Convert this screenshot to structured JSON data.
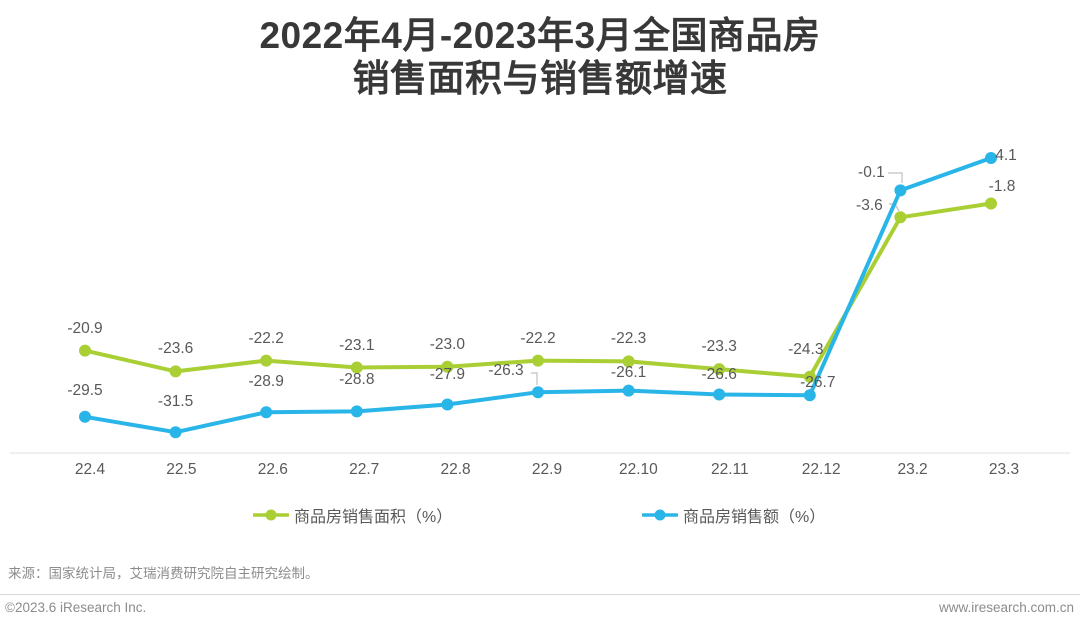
{
  "title": {
    "line1": "2022年4月-2023年3月全国商品房",
    "line2": "销售面积与销售额增速"
  },
  "chart_data": {
    "type": "line",
    "title": "2022年4月-2023年3月全国商品房销售面积与销售额增速",
    "categories": [
      "22.4",
      "22.5",
      "22.6",
      "22.7",
      "22.8",
      "22.9",
      "22.10",
      "22.11",
      "22.12",
      "23.2",
      "23.3"
    ],
    "series": [
      {
        "name": "商品房销售面积（%）",
        "color": "#a9cf35",
        "values": [
          -20.9,
          -23.6,
          -22.2,
          -23.1,
          -23.0,
          -22.2,
          -22.3,
          -23.3,
          -24.3,
          -3.6,
          -1.8
        ]
      },
      {
        "name": "商品房销售额（%）",
        "color": "#2ab5e9",
        "values": [
          -29.5,
          -31.5,
          -28.9,
          -28.8,
          -27.9,
          -26.3,
          -26.1,
          -26.6,
          -26.7,
          -0.1,
          4.1
        ]
      }
    ],
    "xlabel": "",
    "ylabel": "",
    "ylim": [
      -34.2,
      8.0
    ],
    "grid": false,
    "legend_position": "bottom",
    "data_labels_shown": true
  },
  "footer": {
    "source": "来源：国家统计局，艾瑞消费研究院自主研究绘制。",
    "copyright": "©2023.6 iResearch Inc.",
    "website": "www.iresearch.com.cn"
  },
  "colors": {
    "axis_line": "#e6e6e6",
    "leader_line": "#c0c0c0",
    "label_text": "#595959",
    "title_text": "#383838",
    "footer_text": "#8c8c8c"
  }
}
